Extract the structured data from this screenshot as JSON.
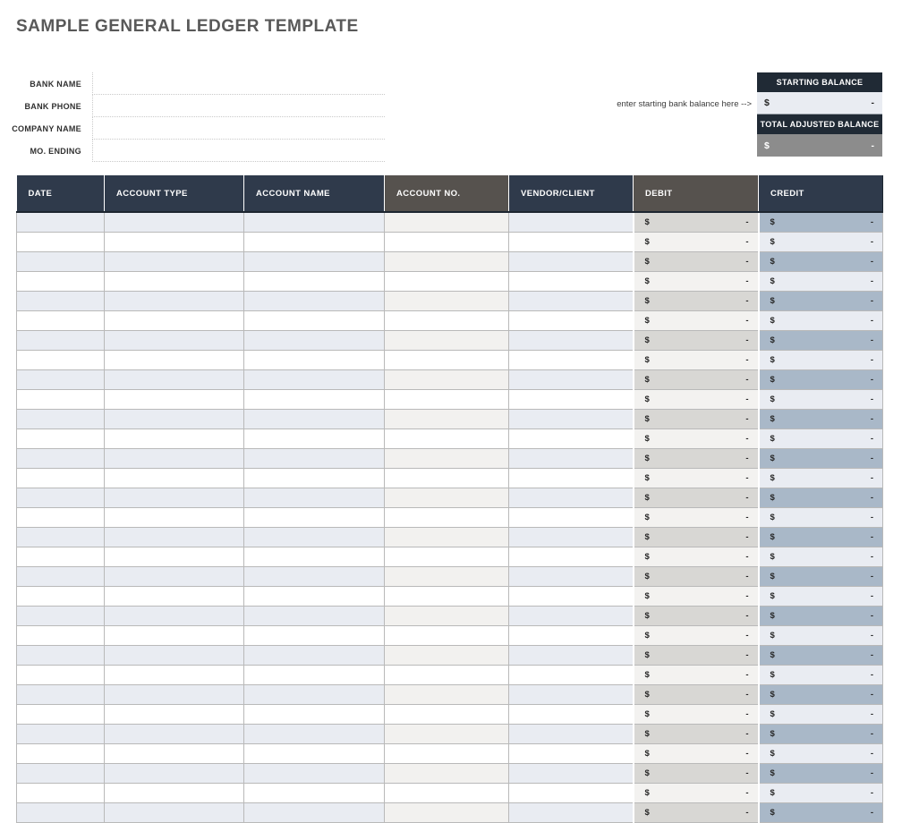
{
  "page": {
    "title": "SAMPLE GENERAL LEDGER TEMPLATE"
  },
  "form": {
    "fields": [
      {
        "label": "BANK NAME",
        "value": ""
      },
      {
        "label": "BANK PHONE",
        "value": ""
      },
      {
        "label": "COMPANY NAME",
        "value": ""
      },
      {
        "label": "MO. ENDING",
        "value": ""
      }
    ]
  },
  "balance": {
    "hint": "enter starting bank balance here -->",
    "starting": {
      "header": "STARTING BALANCE",
      "currency": "$",
      "amount": "-"
    },
    "total_adjusted": {
      "header": "TOTAL ADJUSTED BALANCE",
      "currency": "$",
      "amount": "-"
    }
  },
  "table": {
    "columns": [
      {
        "key": "date",
        "label": "DATE",
        "header_style": "navy",
        "type": "text"
      },
      {
        "key": "account_type",
        "label": "ACCOUNT TYPE",
        "header_style": "navy",
        "type": "text"
      },
      {
        "key": "account_name",
        "label": "ACCOUNT NAME",
        "header_style": "navy",
        "type": "text"
      },
      {
        "key": "account_no",
        "label": "ACCOUNT NO.",
        "header_style": "gray",
        "type": "text"
      },
      {
        "key": "vendor_client",
        "label": "VENDOR/CLIENT",
        "header_style": "navy",
        "type": "text"
      },
      {
        "key": "debit",
        "label": "DEBIT",
        "header_style": "gray",
        "type": "currency"
      },
      {
        "key": "credit",
        "label": "CREDIT",
        "header_style": "navy",
        "type": "currency"
      }
    ],
    "rows": [
      {
        "date": "",
        "account_type": "",
        "account_name": "",
        "account_no": "",
        "vendor_client": "",
        "debit_currency": "$",
        "debit_amount": "-",
        "credit_currency": "$",
        "credit_amount": "-"
      },
      {
        "date": "",
        "account_type": "",
        "account_name": "",
        "account_no": "",
        "vendor_client": "",
        "debit_currency": "$",
        "debit_amount": "-",
        "credit_currency": "$",
        "credit_amount": "-"
      },
      {
        "date": "",
        "account_type": "",
        "account_name": "",
        "account_no": "",
        "vendor_client": "",
        "debit_currency": "$",
        "debit_amount": "-",
        "credit_currency": "$",
        "credit_amount": "-"
      },
      {
        "date": "",
        "account_type": "",
        "account_name": "",
        "account_no": "",
        "vendor_client": "",
        "debit_currency": "$",
        "debit_amount": "-",
        "credit_currency": "$",
        "credit_amount": "-"
      },
      {
        "date": "",
        "account_type": "",
        "account_name": "",
        "account_no": "",
        "vendor_client": "",
        "debit_currency": "$",
        "debit_amount": "-",
        "credit_currency": "$",
        "credit_amount": "-"
      },
      {
        "date": "",
        "account_type": "",
        "account_name": "",
        "account_no": "",
        "vendor_client": "",
        "debit_currency": "$",
        "debit_amount": "-",
        "credit_currency": "$",
        "credit_amount": "-"
      },
      {
        "date": "",
        "account_type": "",
        "account_name": "",
        "account_no": "",
        "vendor_client": "",
        "debit_currency": "$",
        "debit_amount": "-",
        "credit_currency": "$",
        "credit_amount": "-"
      },
      {
        "date": "",
        "account_type": "",
        "account_name": "",
        "account_no": "",
        "vendor_client": "",
        "debit_currency": "$",
        "debit_amount": "-",
        "credit_currency": "$",
        "credit_amount": "-"
      },
      {
        "date": "",
        "account_type": "",
        "account_name": "",
        "account_no": "",
        "vendor_client": "",
        "debit_currency": "$",
        "debit_amount": "-",
        "credit_currency": "$",
        "credit_amount": "-"
      },
      {
        "date": "",
        "account_type": "",
        "account_name": "",
        "account_no": "",
        "vendor_client": "",
        "debit_currency": "$",
        "debit_amount": "-",
        "credit_currency": "$",
        "credit_amount": "-"
      },
      {
        "date": "",
        "account_type": "",
        "account_name": "",
        "account_no": "",
        "vendor_client": "",
        "debit_currency": "$",
        "debit_amount": "-",
        "credit_currency": "$",
        "credit_amount": "-"
      },
      {
        "date": "",
        "account_type": "",
        "account_name": "",
        "account_no": "",
        "vendor_client": "",
        "debit_currency": "$",
        "debit_amount": "-",
        "credit_currency": "$",
        "credit_amount": "-"
      },
      {
        "date": "",
        "account_type": "",
        "account_name": "",
        "account_no": "",
        "vendor_client": "",
        "debit_currency": "$",
        "debit_amount": "-",
        "credit_currency": "$",
        "credit_amount": "-"
      },
      {
        "date": "",
        "account_type": "",
        "account_name": "",
        "account_no": "",
        "vendor_client": "",
        "debit_currency": "$",
        "debit_amount": "-",
        "credit_currency": "$",
        "credit_amount": "-"
      },
      {
        "date": "",
        "account_type": "",
        "account_name": "",
        "account_no": "",
        "vendor_client": "",
        "debit_currency": "$",
        "debit_amount": "-",
        "credit_currency": "$",
        "credit_amount": "-"
      },
      {
        "date": "",
        "account_type": "",
        "account_name": "",
        "account_no": "",
        "vendor_client": "",
        "debit_currency": "$",
        "debit_amount": "-",
        "credit_currency": "$",
        "credit_amount": "-"
      },
      {
        "date": "",
        "account_type": "",
        "account_name": "",
        "account_no": "",
        "vendor_client": "",
        "debit_currency": "$",
        "debit_amount": "-",
        "credit_currency": "$",
        "credit_amount": "-"
      },
      {
        "date": "",
        "account_type": "",
        "account_name": "",
        "account_no": "",
        "vendor_client": "",
        "debit_currency": "$",
        "debit_amount": "-",
        "credit_currency": "$",
        "credit_amount": "-"
      },
      {
        "date": "",
        "account_type": "",
        "account_name": "",
        "account_no": "",
        "vendor_client": "",
        "debit_currency": "$",
        "debit_amount": "-",
        "credit_currency": "$",
        "credit_amount": "-"
      },
      {
        "date": "",
        "account_type": "",
        "account_name": "",
        "account_no": "",
        "vendor_client": "",
        "debit_currency": "$",
        "debit_amount": "-",
        "credit_currency": "$",
        "credit_amount": "-"
      },
      {
        "date": "",
        "account_type": "",
        "account_name": "",
        "account_no": "",
        "vendor_client": "",
        "debit_currency": "$",
        "debit_amount": "-",
        "credit_currency": "$",
        "credit_amount": "-"
      },
      {
        "date": "",
        "account_type": "",
        "account_name": "",
        "account_no": "",
        "vendor_client": "",
        "debit_currency": "$",
        "debit_amount": "-",
        "credit_currency": "$",
        "credit_amount": "-"
      },
      {
        "date": "",
        "account_type": "",
        "account_name": "",
        "account_no": "",
        "vendor_client": "",
        "debit_currency": "$",
        "debit_amount": "-",
        "credit_currency": "$",
        "credit_amount": "-"
      },
      {
        "date": "",
        "account_type": "",
        "account_name": "",
        "account_no": "",
        "vendor_client": "",
        "debit_currency": "$",
        "debit_amount": "-",
        "credit_currency": "$",
        "credit_amount": "-"
      },
      {
        "date": "",
        "account_type": "",
        "account_name": "",
        "account_no": "",
        "vendor_client": "",
        "debit_currency": "$",
        "debit_amount": "-",
        "credit_currency": "$",
        "credit_amount": "-"
      },
      {
        "date": "",
        "account_type": "",
        "account_name": "",
        "account_no": "",
        "vendor_client": "",
        "debit_currency": "$",
        "debit_amount": "-",
        "credit_currency": "$",
        "credit_amount": "-"
      },
      {
        "date": "",
        "account_type": "",
        "account_name": "",
        "account_no": "",
        "vendor_client": "",
        "debit_currency": "$",
        "debit_amount": "-",
        "credit_currency": "$",
        "credit_amount": "-"
      },
      {
        "date": "",
        "account_type": "",
        "account_name": "",
        "account_no": "",
        "vendor_client": "",
        "debit_currency": "$",
        "debit_amount": "-",
        "credit_currency": "$",
        "credit_amount": "-"
      },
      {
        "date": "",
        "account_type": "",
        "account_name": "",
        "account_no": "",
        "vendor_client": "",
        "debit_currency": "$",
        "debit_amount": "-",
        "credit_currency": "$",
        "credit_amount": "-"
      },
      {
        "date": "",
        "account_type": "",
        "account_name": "",
        "account_no": "",
        "vendor_client": "",
        "debit_currency": "$",
        "debit_amount": "-",
        "credit_currency": "$",
        "credit_amount": "-"
      },
      {
        "date": "",
        "account_type": "",
        "account_name": "",
        "account_no": "",
        "vendor_client": "",
        "debit_currency": "$",
        "debit_amount": "-",
        "credit_currency": "$",
        "credit_amount": "-"
      }
    ]
  },
  "colors": {
    "navy": "#2f3a4b",
    "navy-dark": "#202a35",
    "warmgray": "#56524e",
    "shade-blue": "#e9ecf2",
    "shade-warm": "#f2f1ef",
    "debit-odd": "#d8d7d4",
    "debit-even": "#f3f2f0",
    "credit-odd": "#a9b8c8",
    "credit-even": "#e9ecf2",
    "total-cell": "#8c8c8c",
    "grid": "#b9b9b9",
    "title": "#595959"
  }
}
